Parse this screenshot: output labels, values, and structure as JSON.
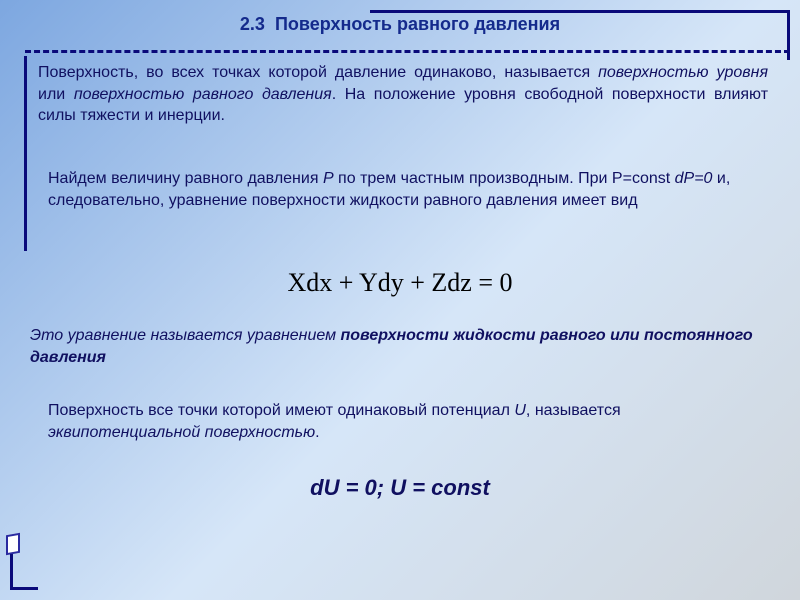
{
  "colors": {
    "frame": "#0a0a7a",
    "title": "#142a8c",
    "text": "#101060",
    "equation": "#000000",
    "bg_gradient_from": "#7da7e0",
    "bg_gradient_mid": "#d6e6f8",
    "bg_gradient_to": "#d0d6dc"
  },
  "typography": {
    "title_pt": 18,
    "body_pt": 16,
    "eq1_pt": 26,
    "eq2_pt": 22,
    "title_weight": "bold",
    "body_family": "Arial",
    "eq1_family": "Times New Roman"
  },
  "title": {
    "number": "2.3",
    "text": "Поверхность равного давления"
  },
  "para1": {
    "lead": "Поверхность, во всех точках которой давление одинаково, называется ",
    "em1": "поверхностью уровня",
    "mid": " или ",
    "em2": "поверхностью равного давления",
    "tail": ". На положение уровня свободной поверхности влияют силы тяжести и инерции."
  },
  "para2": {
    "s1": "Найдем величину равного давления ",
    "P1": "P",
    "s2": " по трем частным производным. При P=const ",
    "dP": "dP=0",
    "s3": " и, следовательно, уравнение поверхности жидкости равного давления имеет вид"
  },
  "equation1": "Xdx + Ydy + Zdz = 0",
  "para3": {
    "lead": "Это уравнение называется уравнением ",
    "bold": "поверхности жидкости равного или постоянного давления"
  },
  "para4": {
    "s1": "Поверхность все точки которой имеют одинаковый потенциал ",
    "U": "U",
    "s2": ", называется ",
    "em": "эквипотенциальной поверхностью",
    "s3": "."
  },
  "equation2": "dU = 0; U = const"
}
